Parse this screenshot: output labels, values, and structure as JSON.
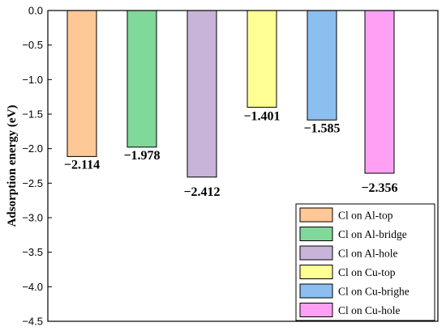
{
  "chart_data": {
    "type": "bar",
    "categories": [
      "Cl on Al-top",
      "Cl on Al-bridge",
      "Cl on Al-hole",
      "Cl on Cu-top",
      "Cl on Cu-brighe",
      "Cl on Cu-hole"
    ],
    "values": [
      -2.114,
      -1.978,
      -2.412,
      -1.401,
      -1.585,
      -2.356
    ],
    "value_labels": [
      "−2.114",
      "−1.978",
      "−2.412",
      "−1.401",
      "−1.585",
      "−2.356"
    ],
    "colors": [
      "#FFC896",
      "#80D89A",
      "#C8B4D8",
      "#FFFF96",
      "#8CBEF0",
      "#FFA0F5"
    ],
    "ylabel": "Adsorption energy (eV)",
    "ylim": [
      -4.5,
      0.0
    ],
    "yticks": [
      "0.0",
      "−0.5",
      "−1.0",
      "−1.5",
      "−2.0",
      "−2.5",
      "−3.0",
      "−3.5",
      "−4.0",
      "−4.5"
    ],
    "ytick_values": [
      0.0,
      -0.5,
      -1.0,
      -1.5,
      -2.0,
      -2.5,
      -3.0,
      -3.5,
      -4.0,
      -4.5
    ],
    "legend": {
      "position": "bottom-right",
      "entries": [
        "Cl on Al-top",
        "Cl on Al-bridge",
        "Cl on Al-hole",
        "Cl on Cu-top",
        "Cl on Cu-brighe",
        "Cl on Cu-hole"
      ]
    },
    "grid": false
  }
}
